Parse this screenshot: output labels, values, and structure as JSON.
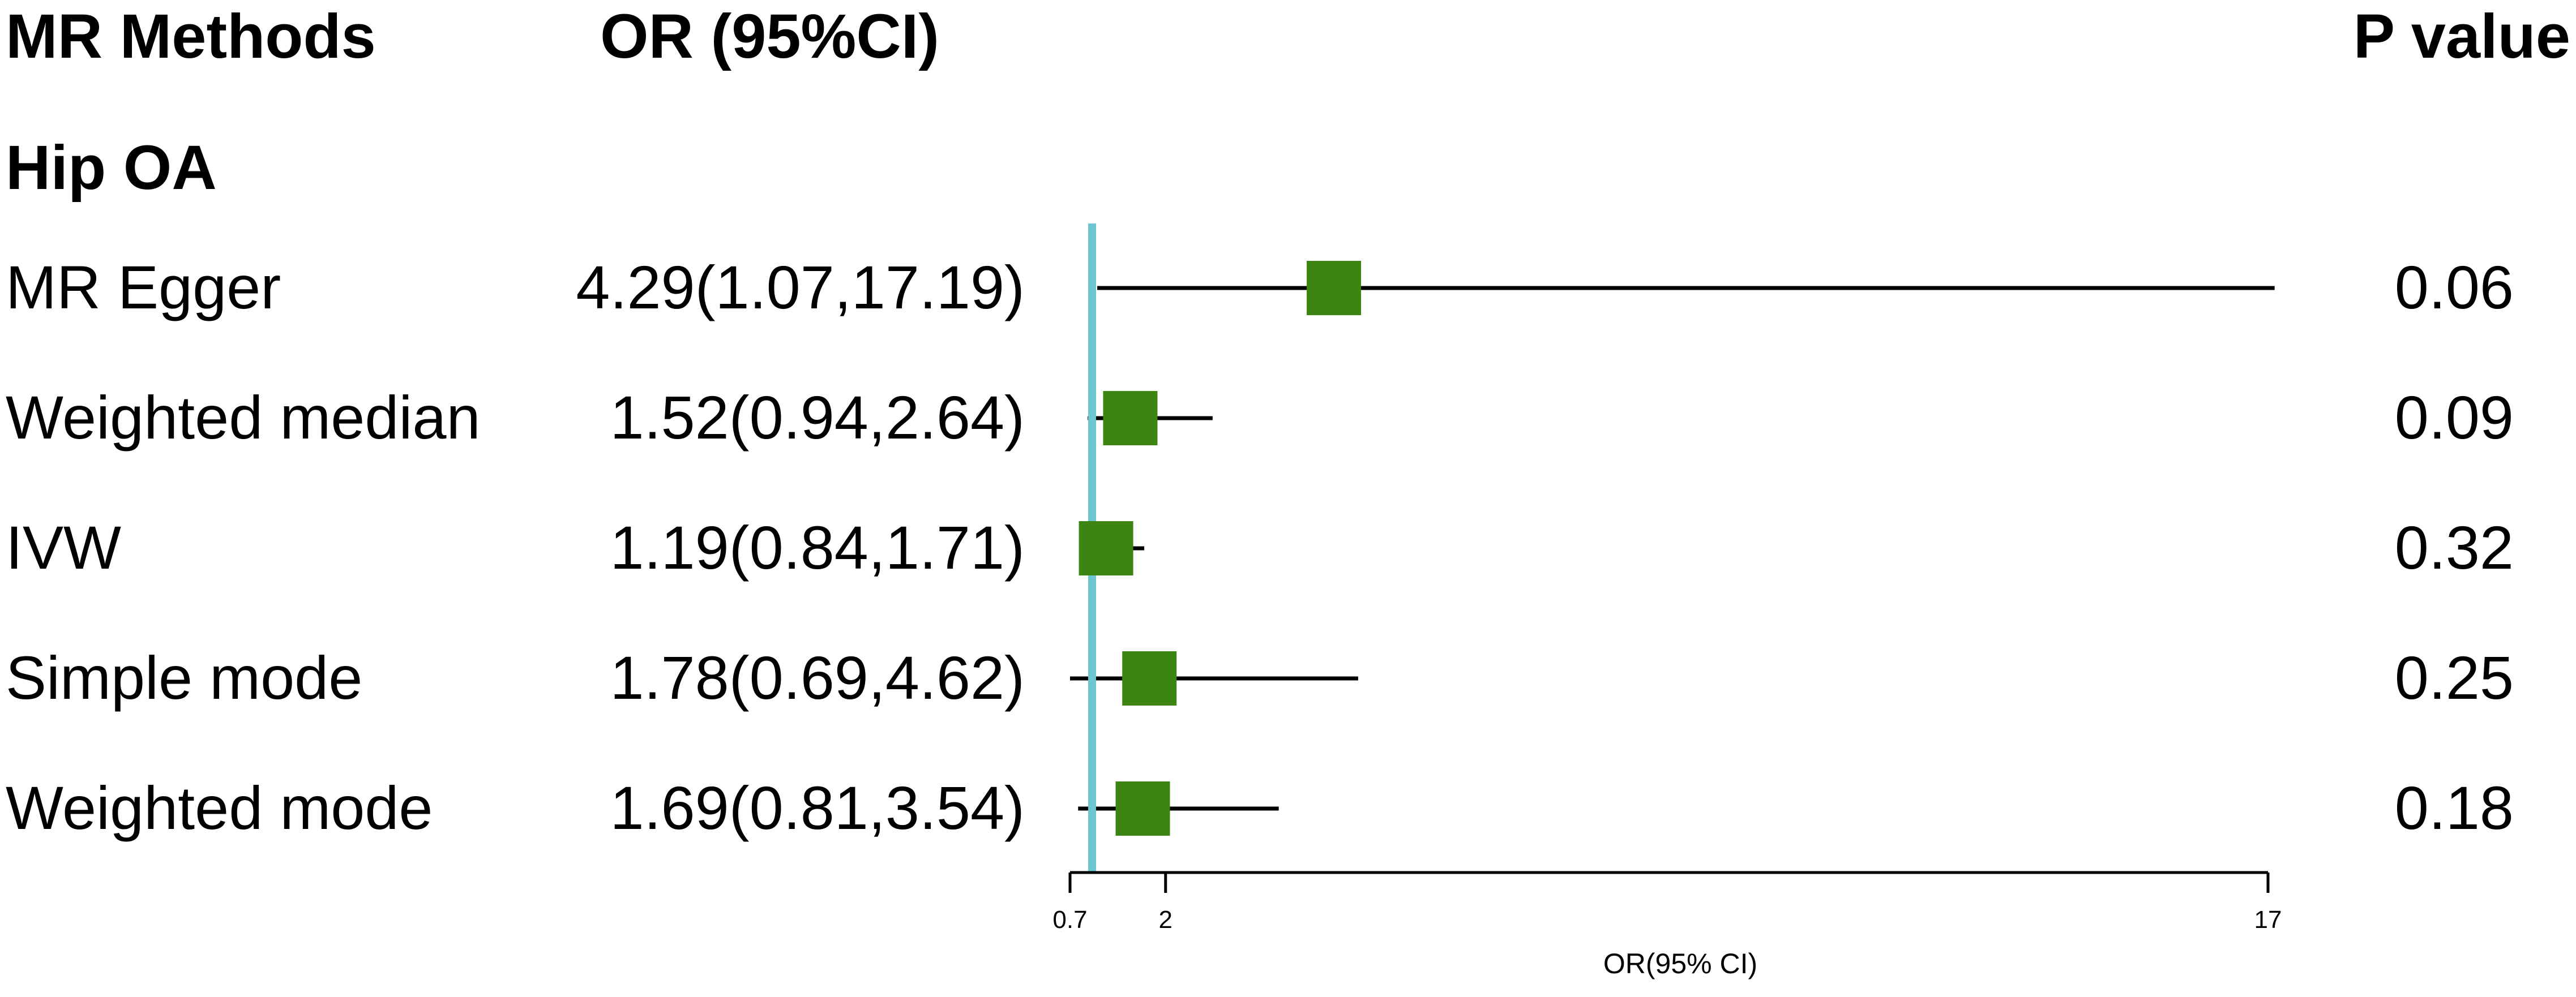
{
  "headers": {
    "method": "MR Methods",
    "or": "OR (95%CI)",
    "p": "P value"
  },
  "group": "Hip OA",
  "rows": [
    {
      "method": "MR Egger",
      "ci_text": "4.29(1.07,17.19)",
      "p": "0.06"
    },
    {
      "method": "Weighted median",
      "ci_text": "1.52(0.94,2.64)",
      "p": "0.09"
    },
    {
      "method": "IVW",
      "ci_text": "1.19(0.84,1.71)",
      "p": "0.32"
    },
    {
      "method": "Simple mode",
      "ci_text": "1.78(0.69,4.62)",
      "p": "0.25"
    },
    {
      "method": "Weighted mode",
      "ci_text": "1.69(0.81,3.54)",
      "p": "0.18"
    }
  ],
  "chart_data": {
    "type": "forest",
    "xlabel": "OR(95% CI)",
    "xlim": [
      0.7,
      17
    ],
    "ticks": [
      "0.7",
      "2",
      "17"
    ],
    "reference_line": 1,
    "colors": {
      "marker": "#3c8512",
      "reference": "#6ec6d2",
      "line": "#000000"
    },
    "series": [
      {
        "label": "MR Egger",
        "or": 4.29,
        "lower": 1.07,
        "upper": 17.19
      },
      {
        "label": "Weighted median",
        "or": 1.52,
        "lower": 0.94,
        "upper": 2.64
      },
      {
        "label": "IVW",
        "or": 1.19,
        "lower": 0.84,
        "upper": 1.71
      },
      {
        "label": "Simple mode",
        "or": 1.78,
        "lower": 0.69,
        "upper": 4.62
      },
      {
        "label": "Weighted mode",
        "or": 1.69,
        "lower": 0.81,
        "upper": 3.54
      }
    ]
  }
}
